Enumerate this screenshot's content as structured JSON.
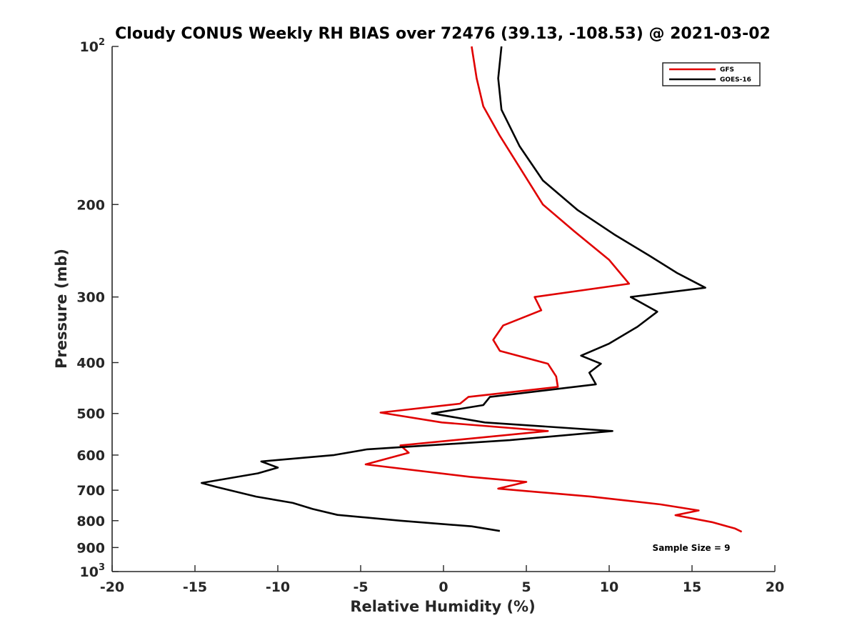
{
  "chart_data": {
    "type": "line",
    "title": "Cloudy CONUS Weekly RH BIAS over 72476 (39.13, -108.53) @ 2021-03-02",
    "xlabel": "Relative Humidity (%)",
    "ylabel": "Pressure (mb)",
    "xlim": [
      -20,
      20
    ],
    "ylim": [
      100,
      1000
    ],
    "y_scale": "log",
    "y_reversed": true,
    "grid": false,
    "legend_position": "top-right",
    "x_ticks": [
      -20,
      -15,
      -10,
      -5,
      0,
      5,
      10,
      15,
      20
    ],
    "x_tick_labels": [
      "-20",
      "-15",
      "-10",
      "-5",
      "0",
      "5",
      "10",
      "15",
      "20"
    ],
    "y_ticks": [
      100,
      200,
      300,
      400,
      500,
      600,
      700,
      800,
      900,
      1000
    ],
    "y_tick_labels": [
      {
        "base": "10",
        "sup": "2"
      },
      {
        "base": "200"
      },
      {
        "base": "300"
      },
      {
        "base": "400"
      },
      {
        "base": "500"
      },
      {
        "base": "600"
      },
      {
        "base": "700"
      },
      {
        "base": "800"
      },
      {
        "base": "900"
      },
      {
        "base": "10",
        "sup": "3"
      }
    ],
    "annotation": "Sample Size = 9",
    "series": [
      {
        "name": "GFS",
        "color": "#e00000",
        "x": [
          1.7,
          2.0,
          2.4,
          3.4,
          4.7,
          6.0,
          7.9,
          10.0,
          11.2,
          5.5,
          5.9,
          3.6,
          3.0,
          3.4,
          6.3,
          6.8,
          6.9,
          1.5,
          1.0,
          -3.8,
          -0.1,
          6.3,
          -2.6,
          -2.1,
          -4.7,
          1.6,
          5.0,
          3.3,
          8.9,
          13.1,
          15.4,
          14.0,
          16.2,
          17.6,
          18.0
        ],
        "y": [
          100,
          115,
          130,
          148,
          172,
          200,
          225,
          255,
          283,
          300,
          318,
          340,
          362,
          380,
          402,
          425,
          445,
          465,
          479,
          498,
          520,
          540,
          575,
          594,
          625,
          660,
          675,
          695,
          720,
          745,
          765,
          781,
          805,
          828,
          840
        ]
      },
      {
        "name": "GOES-16",
        "color": "#000000",
        "x": [
          3.5,
          3.3,
          3.5,
          4.6,
          6.0,
          8.1,
          10.3,
          12.4,
          14.1,
          15.8,
          11.3,
          12.9,
          11.7,
          10.0,
          8.3,
          9.5,
          8.8,
          9.2,
          2.8,
          2.4,
          -0.7,
          2.5,
          10.2,
          4.0,
          -4.6,
          -6.6,
          -11.0,
          -10.0,
          -11.2,
          -14.6,
          -13.7,
          -11.3,
          -9.1,
          -7.9,
          -6.4,
          -2.6,
          1.7,
          3.4
        ],
        "y": [
          100,
          115,
          132,
          155,
          180,
          205,
          228,
          250,
          270,
          288,
          300,
          320,
          342,
          368,
          388,
          402,
          418,
          440,
          465,
          482,
          500,
          520,
          540,
          562,
          585,
          600,
          617,
          634,
          650,
          678,
          690,
          720,
          740,
          760,
          780,
          800,
          820,
          837
        ]
      }
    ]
  }
}
